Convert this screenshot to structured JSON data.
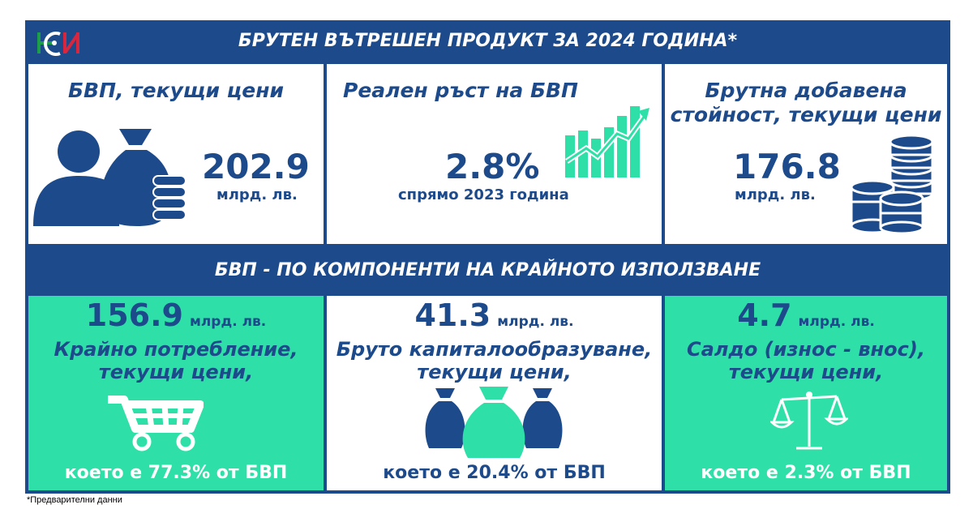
{
  "header": {
    "title": "БРУТЕН ВЪТРЕШЕН ПРОДУКТ ЗА 2024 ГОДИНА*"
  },
  "logo": {
    "icon": "nsi-logo",
    "colors": [
      "#1d9e4a",
      "#1d4a8a",
      "#d7263d"
    ]
  },
  "top": [
    {
      "title": "БВП, текущи цени",
      "value": "202.9",
      "unit": "млрд. лв.",
      "icon": "person-money-bag-icon"
    },
    {
      "title": "Реален ръст на БВП",
      "value": "2.8%",
      "unit": "спрямо 2023 година",
      "icon": "growth-chart-icon"
    },
    {
      "title_line1": "Брутна добавена",
      "title_line2": "стойност, текущи цени",
      "value": "176.8",
      "unit": "млрд. лв.",
      "icon": "coin-stacks-icon"
    }
  ],
  "section2": {
    "title": "БВП - ПО КОМПОНЕНТИ НА КРАЙНОТО ИЗПОЛЗВАНЕ"
  },
  "components": [
    {
      "value": "156.9",
      "unit": "млрд. лв.",
      "line1": "Крайно потребление,",
      "line2": "текущи цени,",
      "share": "което е 77.3% от БВП",
      "icon": "shopping-cart-icon"
    },
    {
      "value": "41.3",
      "unit": "млрд. лв.",
      "line1": "Бруто капиталообразуване,",
      "line2": "текущи цени,",
      "share": "което е 20.4% от БВП",
      "icon": "money-bags-icon"
    },
    {
      "value": "4.7",
      "unit": "млрд. лв.",
      "line1": "Салдо (износ - внос),",
      "line2": "текущи цени,",
      "share": "което е 2.3% от БВП",
      "icon": "balance-scale-icon"
    }
  ],
  "footnote": "*Предварителни данни",
  "colors": {
    "navy": "#1d4a8a",
    "teal": "#2ee0a8",
    "white": "#ffffff"
  }
}
